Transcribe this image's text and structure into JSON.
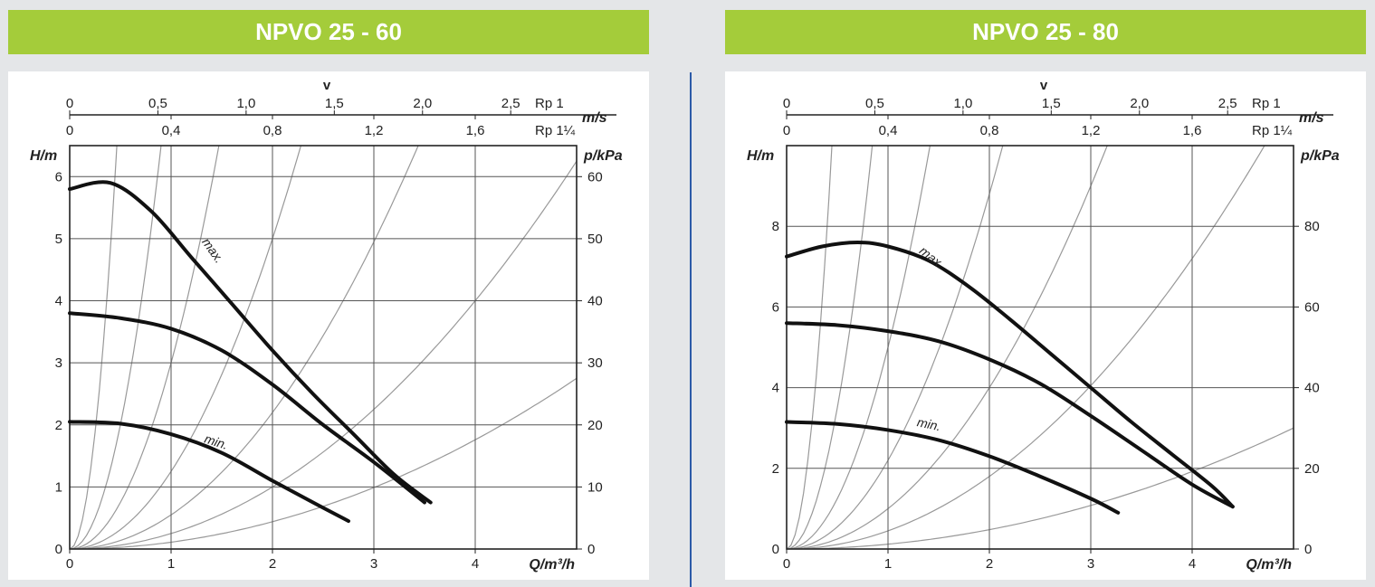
{
  "panels": [
    {
      "title": "NPVO 25 - 60",
      "colors": {
        "header_bg": "#a4cc3a",
        "header_text": "#ffffff"
      }
    },
    {
      "title": "NPVO 25 - 80",
      "colors": {
        "header_bg": "#a4cc3a",
        "header_text": "#ffffff"
      }
    }
  ],
  "chart_data": [
    {
      "type": "line",
      "title": "NPVO 25 - 60",
      "xlabel": "Q/m³/h",
      "ylabel": "H/m",
      "y2label": "p/kPa",
      "vlabel": "v",
      "vunit": "m/s",
      "xlim": [
        0,
        5
      ],
      "ylim": [
        0,
        6.5
      ],
      "x_ticks": [
        "0",
        "1",
        "2",
        "3",
        "4"
      ],
      "y_ticks": [
        "0",
        "1",
        "2",
        "3",
        "4",
        "5",
        "6"
      ],
      "y2_ticks": [
        "0",
        "10",
        "20",
        "30",
        "40",
        "50",
        "60"
      ],
      "v_axis_top": {
        "pipe": "Rp 1",
        "ticks": [
          "0",
          "0,5",
          "1,0",
          "1,5",
          "2,0",
          "2,5"
        ],
        "tick_q": [
          0,
          0.87,
          1.74,
          2.61,
          3.48,
          4.35
        ]
      },
      "v_axis_bottom": {
        "pipe": "Rp 1¼",
        "ticks": [
          "0",
          "0,4",
          "0,8",
          "1,2",
          "1,6"
        ],
        "tick_q": [
          0,
          1.0,
          2.0,
          3.0,
          4.0
        ]
      },
      "series": [
        {
          "name": "max.",
          "label": "max.",
          "x": [
            0,
            0.4,
            0.8,
            1.2,
            1.6,
            2.0,
            2.4,
            2.8,
            3.2,
            3.56
          ],
          "y": [
            5.8,
            5.9,
            5.45,
            4.7,
            3.95,
            3.2,
            2.5,
            1.85,
            1.2,
            0.75
          ]
        },
        {
          "name": "mid",
          "label": "",
          "x": [
            0,
            0.5,
            1.0,
            1.5,
            2.0,
            2.5,
            3.0,
            3.5
          ],
          "y": [
            3.8,
            3.72,
            3.55,
            3.2,
            2.65,
            2.0,
            1.4,
            0.75
          ]
        },
        {
          "name": "min.",
          "label": "min.",
          "x": [
            0,
            0.5,
            1.0,
            1.5,
            2.0,
            2.4,
            2.75
          ],
          "y": [
            2.05,
            2.02,
            1.85,
            1.55,
            1.1,
            0.75,
            0.45
          ]
        }
      ],
      "system_curves_k": [
        30,
        8,
        3,
        1.25,
        0.55,
        0.25,
        0.11
      ],
      "colors": {
        "curve": "#111111",
        "grid": "#555555",
        "system": "#999999"
      }
    },
    {
      "type": "line",
      "title": "NPVO 25 - 80",
      "xlabel": "Q/m³/h",
      "ylabel": "H/m",
      "y2label": "p/kPa",
      "vlabel": "v",
      "vunit": "m/s",
      "xlim": [
        0,
        5
      ],
      "ylim": [
        0,
        10
      ],
      "x_ticks": [
        "0",
        "1",
        "2",
        "3",
        "4"
      ],
      "y_ticks": [
        "0",
        "2",
        "4",
        "6",
        "8"
      ],
      "y2_ticks": [
        "0",
        "20",
        "40",
        "60",
        "80"
      ],
      "v_axis_top": {
        "pipe": "Rp 1",
        "ticks": [
          "0",
          "0,5",
          "1,0",
          "1,5",
          "2,0",
          "2,5"
        ],
        "tick_q": [
          0,
          0.87,
          1.74,
          2.61,
          3.48,
          4.35
        ]
      },
      "v_axis_bottom": {
        "pipe": "Rp 1¼",
        "ticks": [
          "0",
          "0,4",
          "0,8",
          "1,2",
          "1,6"
        ],
        "tick_q": [
          0,
          1.0,
          2.0,
          3.0,
          4.0
        ]
      },
      "series": [
        {
          "name": "max.",
          "label": "max.",
          "x": [
            0,
            0.35,
            0.7,
            1.0,
            1.4,
            1.8,
            2.2,
            2.6,
            3.0,
            3.4,
            3.8,
            4.2,
            4.4
          ],
          "y": [
            7.25,
            7.5,
            7.6,
            7.5,
            7.15,
            6.5,
            5.7,
            4.85,
            4.0,
            3.15,
            2.35,
            1.55,
            1.05
          ]
        },
        {
          "name": "mid",
          "label": "",
          "x": [
            0,
            0.5,
            1.0,
            1.5,
            2.0,
            2.5,
            3.0,
            3.5,
            4.0,
            4.4
          ],
          "y": [
            5.6,
            5.55,
            5.4,
            5.15,
            4.7,
            4.1,
            3.3,
            2.45,
            1.6,
            1.05
          ]
        },
        {
          "name": "min.",
          "label": "min.",
          "x": [
            0,
            0.5,
            1.0,
            1.5,
            2.0,
            2.5,
            3.0,
            3.27
          ],
          "y": [
            3.15,
            3.1,
            2.95,
            2.7,
            2.3,
            1.8,
            1.25,
            0.9
          ]
        }
      ],
      "system_curves_k": [
        50,
        14,
        5,
        2.2,
        1.0,
        0.45,
        0.12
      ],
      "colors": {
        "curve": "#111111",
        "grid": "#555555",
        "system": "#999999"
      }
    }
  ]
}
